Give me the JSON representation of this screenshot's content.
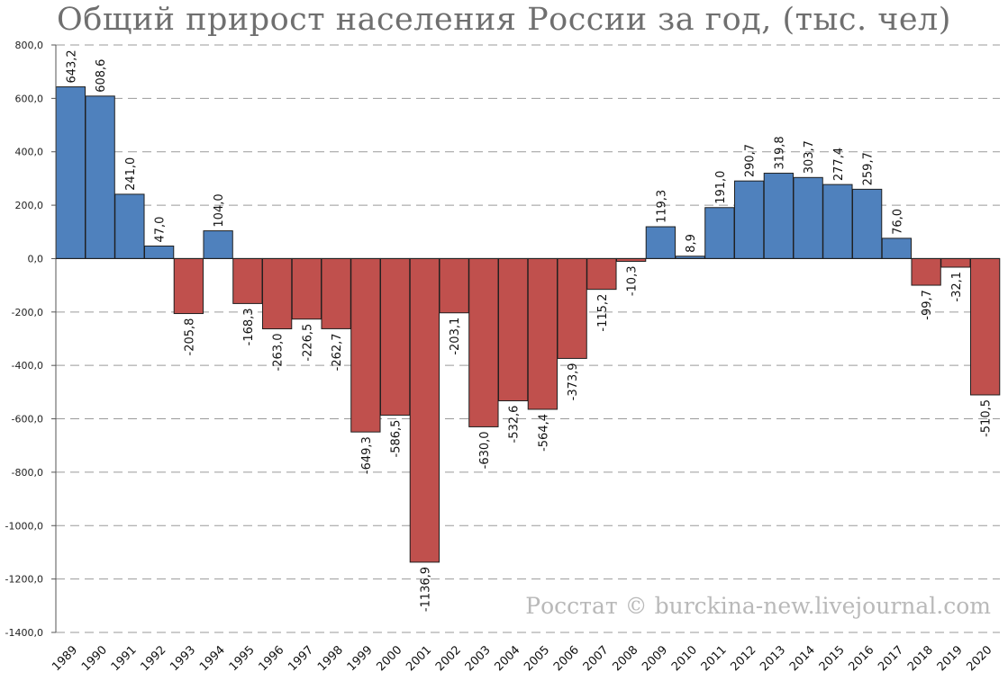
{
  "chart_data": {
    "type": "bar",
    "title": "Общий прирост населения России за год, (тыс. чел)",
    "categories": [
      "1989",
      "1990",
      "1991",
      "1992",
      "1993",
      "1994",
      "1995",
      "1996",
      "1997",
      "1998",
      "1999",
      "2000",
      "2001",
      "2002",
      "2003",
      "2004",
      "2005",
      "2006",
      "2007",
      "2008",
      "2009",
      "2010",
      "2011",
      "2012",
      "2013",
      "2014",
      "2015",
      "2016",
      "2017",
      "2018",
      "2019",
      "2020"
    ],
    "values": [
      643.2,
      608.6,
      241.0,
      47.0,
      -205.8,
      104.0,
      -168.3,
      -263.0,
      -226.5,
      -262.7,
      -649.3,
      -586.5,
      -1136.9,
      -203.1,
      -630.0,
      -532.6,
      -564.4,
      -373.9,
      -115.2,
      -10.3,
      119.3,
      8.9,
      191.0,
      290.7,
      319.8,
      303.7,
      277.4,
      259.7,
      76.0,
      -99.7,
      -32.1,
      -510.5
    ],
    "value_labels": [
      "643,2",
      "608,6",
      "241,0",
      "47,0",
      "-205,8",
      "104,0",
      "-168,3",
      "-263,0",
      "-226,5",
      "-262,7",
      "-649,3",
      "-586,5",
      "-1136,9",
      "-203,1",
      "-630,0",
      "-532,6",
      "-564,4",
      "-373,9",
      "-115,2",
      "-10,3",
      "119,3",
      "8,9",
      "191,0",
      "290,7",
      "319,8",
      "303,7",
      "277,4",
      "259,7",
      "76,0",
      "-99,7",
      "-32,1",
      "-510,5"
    ],
    "ylim": [
      -1400,
      800
    ],
    "yticks": [
      800,
      600,
      400,
      200,
      0,
      -200,
      -400,
      -600,
      -800,
      -1000,
      -1200,
      -1400
    ],
    "ytick_labels": [
      "800,0",
      "600,0",
      "400,0",
      "200,0",
      "0,0",
      "-200,0",
      "-400,0",
      "-600,0",
      "-800,0",
      "-1000,0",
      "-1200,0",
      "-1400,0"
    ],
    "grid": true,
    "legend": "none",
    "colors": {
      "positive": "#4f81bd",
      "negative": "#c0504d",
      "outline": "#1f1f1f",
      "grid": "#9a9a9a"
    },
    "watermark": "Росстат © burckina-new.livejournal.com"
  }
}
